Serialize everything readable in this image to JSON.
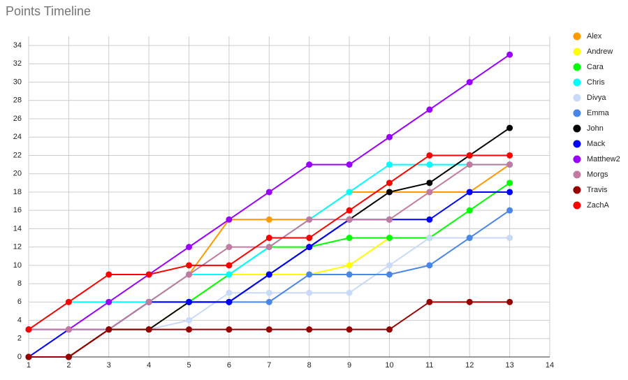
{
  "chart_data": {
    "type": "line",
    "title": "Points Timeline",
    "x": [
      1,
      2,
      3,
      4,
      5,
      6,
      7,
      8,
      9,
      10,
      11,
      12,
      13
    ],
    "xlim": [
      1,
      14
    ],
    "xticks": [
      1,
      2,
      3,
      4,
      5,
      6,
      7,
      8,
      9,
      10,
      11,
      12,
      13,
      14
    ],
    "ylim": [
      0,
      35
    ],
    "yticks": [
      0,
      2,
      4,
      6,
      8,
      10,
      12,
      14,
      16,
      18,
      20,
      22,
      24,
      26,
      28,
      30,
      32,
      34
    ],
    "grid": true,
    "legend": "right",
    "series": [
      {
        "name": "Alex",
        "color": "#ff9900",
        "values": [
          0,
          0,
          3,
          6,
          9,
          15,
          15,
          15,
          18,
          18,
          18,
          18,
          21
        ]
      },
      {
        "name": "Andrew",
        "color": "#ffff00",
        "values": [
          0,
          0,
          3,
          3,
          6,
          9,
          9,
          9,
          10,
          13,
          13,
          13,
          13
        ]
      },
      {
        "name": "Cara",
        "color": "#00ff00",
        "values": [
          0,
          0,
          3,
          6,
          6,
          9,
          12,
          12,
          13,
          13,
          13,
          16,
          19
        ]
      },
      {
        "name": "Chris",
        "color": "#00ffff",
        "values": [
          3,
          6,
          6,
          6,
          9,
          9,
          12,
          15,
          18,
          21,
          21,
          21,
          21
        ]
      },
      {
        "name": "Divya",
        "color": "#c9daf8",
        "values": [
          3,
          3,
          3,
          3,
          4,
          7,
          7,
          7,
          7,
          10,
          13,
          13,
          13
        ]
      },
      {
        "name": "Emma",
        "color": "#4a86e8",
        "values": [
          0,
          0,
          3,
          6,
          6,
          6,
          6,
          9,
          9,
          9,
          10,
          13,
          16
        ]
      },
      {
        "name": "John",
        "color": "#000000",
        "values": [
          0,
          0,
          3,
          3,
          6,
          6,
          9,
          12,
          15,
          18,
          19,
          22,
          25
        ]
      },
      {
        "name": "Mack",
        "color": "#0000ff",
        "values": [
          0,
          3,
          3,
          6,
          6,
          6,
          9,
          12,
          15,
          15,
          15,
          18,
          18
        ]
      },
      {
        "name": "Matthew2",
        "color": "#9900ff",
        "values": [
          3,
          3,
          6,
          9,
          12,
          15,
          18,
          21,
          21,
          24,
          27,
          30,
          33
        ]
      },
      {
        "name": "Morgs",
        "color": "#c27ba0",
        "values": [
          3,
          3,
          3,
          6,
          9,
          12,
          12,
          15,
          15,
          15,
          18,
          21,
          21
        ]
      },
      {
        "name": "Travis",
        "color": "#980000",
        "values": [
          0,
          0,
          3,
          3,
          3,
          3,
          3,
          3,
          3,
          3,
          6,
          6,
          6
        ]
      },
      {
        "name": "ZachA",
        "color": "#ff0000",
        "values": [
          3,
          6,
          9,
          9,
          10,
          10,
          13,
          13,
          16,
          19,
          22,
          22,
          22
        ]
      }
    ]
  }
}
